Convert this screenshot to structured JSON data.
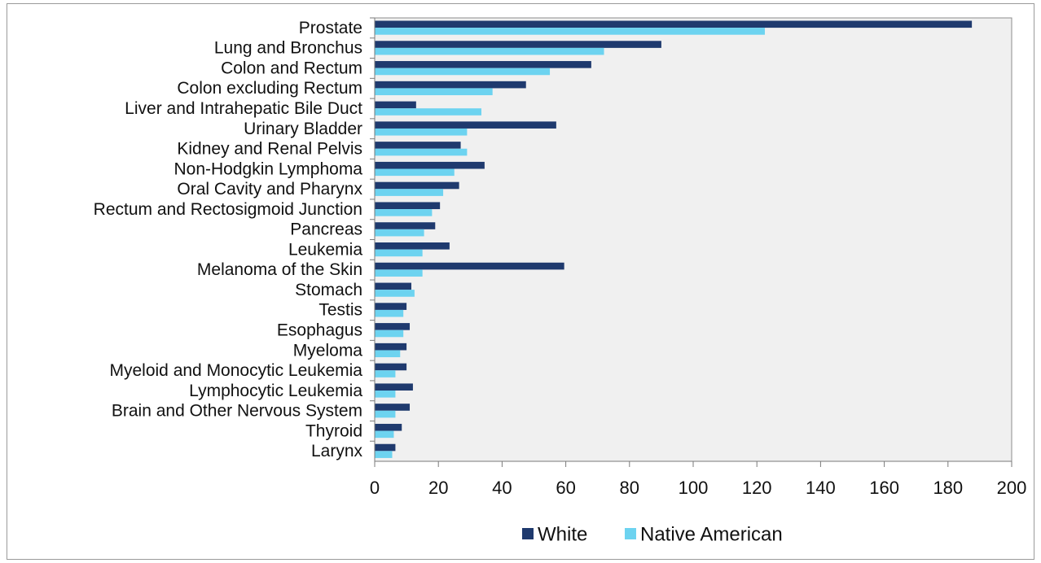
{
  "chart_data": {
    "type": "bar",
    "orientation": "horizontal",
    "title": "",
    "xlabel": "",
    "ylabel": "",
    "categories": [
      "Prostate",
      "Lung and Bronchus",
      "Colon and Rectum",
      "Colon excluding Rectum",
      "Liver and Intrahepatic Bile Duct",
      "Urinary Bladder",
      "Kidney and Renal Pelvis",
      "Non-Hodgkin Lymphoma",
      "Oral Cavity and Pharynx",
      "Rectum and Rectosigmoid Junction",
      "Pancreas",
      "Leukemia",
      "Melanoma of the Skin",
      "Stomach",
      "Testis",
      "Esophagus",
      "Myeloma",
      "Myeloid and Monocytic Leukemia",
      "Lymphocytic Leukemia",
      "Brain and Other Nervous System",
      "Thyroid",
      "Larynx"
    ],
    "series": [
      {
        "name": "White",
        "color": "#1f3a6e",
        "values": [
          187.5,
          90,
          68,
          47.5,
          13,
          57,
          27,
          34.5,
          26.5,
          20.5,
          19,
          23.5,
          59.5,
          11.5,
          10,
          11,
          10,
          10,
          12,
          11,
          8.5,
          6.5
        ]
      },
      {
        "name": "Native American",
        "color": "#6dd3f0",
        "values": [
          122.5,
          72,
          55,
          37,
          33.5,
          29,
          29,
          25,
          21.5,
          18,
          15.5,
          15,
          15,
          12.5,
          9,
          9,
          8,
          6.5,
          6.5,
          6.5,
          6,
          5.5
        ]
      }
    ],
    "xlim": [
      0,
      200
    ],
    "xticks": [
      "0",
      "20",
      "40",
      "60",
      "80",
      "100",
      "120",
      "140",
      "160",
      "180",
      "200"
    ],
    "grid": false,
    "plot_background": "#f0f0f0",
    "legend_position": "bottom"
  }
}
